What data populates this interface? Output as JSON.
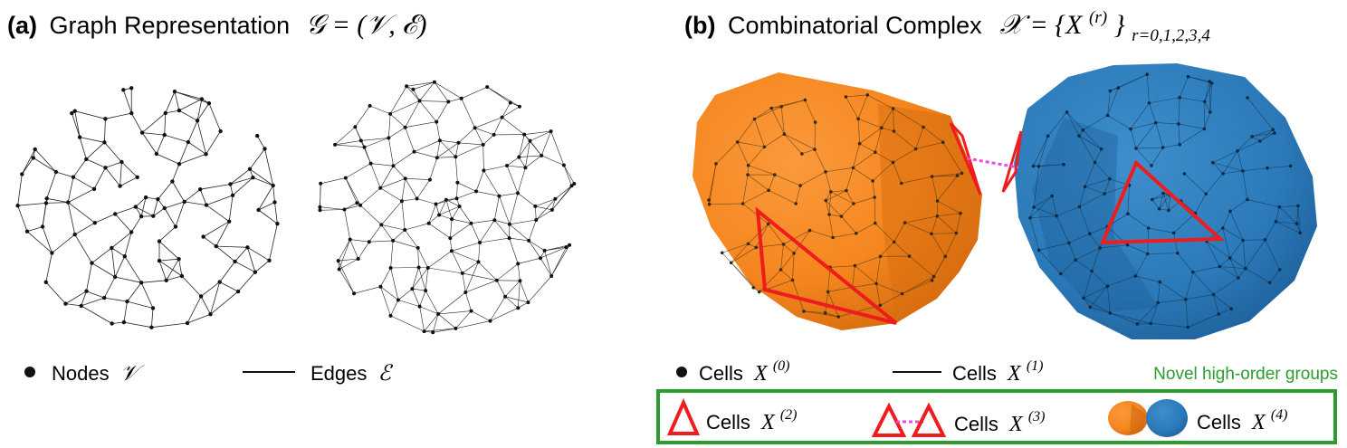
{
  "panel_a": {
    "tag": "(a)",
    "title": "Graph Representation",
    "formula": "𝒢 = (𝒱, ℰ)",
    "legend_nodes_label": "Nodes",
    "legend_nodes_symbol": "𝒱",
    "legend_edges_label": "Edges",
    "legend_edges_symbol": "ℰ"
  },
  "panel_b": {
    "tag": "(b)",
    "title": "Combinatorial Complex",
    "formula_main": "𝒳 = {X",
    "formula_sup": "(r)",
    "formula_close": "}",
    "formula_sub": "r=0,1,2,3,4",
    "cells0_label": "Cells",
    "cells0_symbol": "X",
    "cells0_sup": "(0)",
    "cells1_label": "Cells",
    "cells1_symbol": "X",
    "cells1_sup": "(1)",
    "novel_title": "Novel high-order groups",
    "cells2_label": "Cells",
    "cells2_symbol": "X",
    "cells2_sup": "(2)",
    "cells3_label": "Cells",
    "cells3_symbol": "X",
    "cells3_sup": "(3)",
    "cells4_label": "Cells",
    "cells4_symbol": "X",
    "cells4_sup": "(4)"
  },
  "colors": {
    "orange": "#f5861f",
    "orange_dark": "#d96f10",
    "blue": "#2f7fc0",
    "blue_dark": "#1f6aa8",
    "red": "#ee1c1c",
    "magenta": "#e64ce6",
    "green": "#2e9b2e",
    "wire": "#222222"
  }
}
